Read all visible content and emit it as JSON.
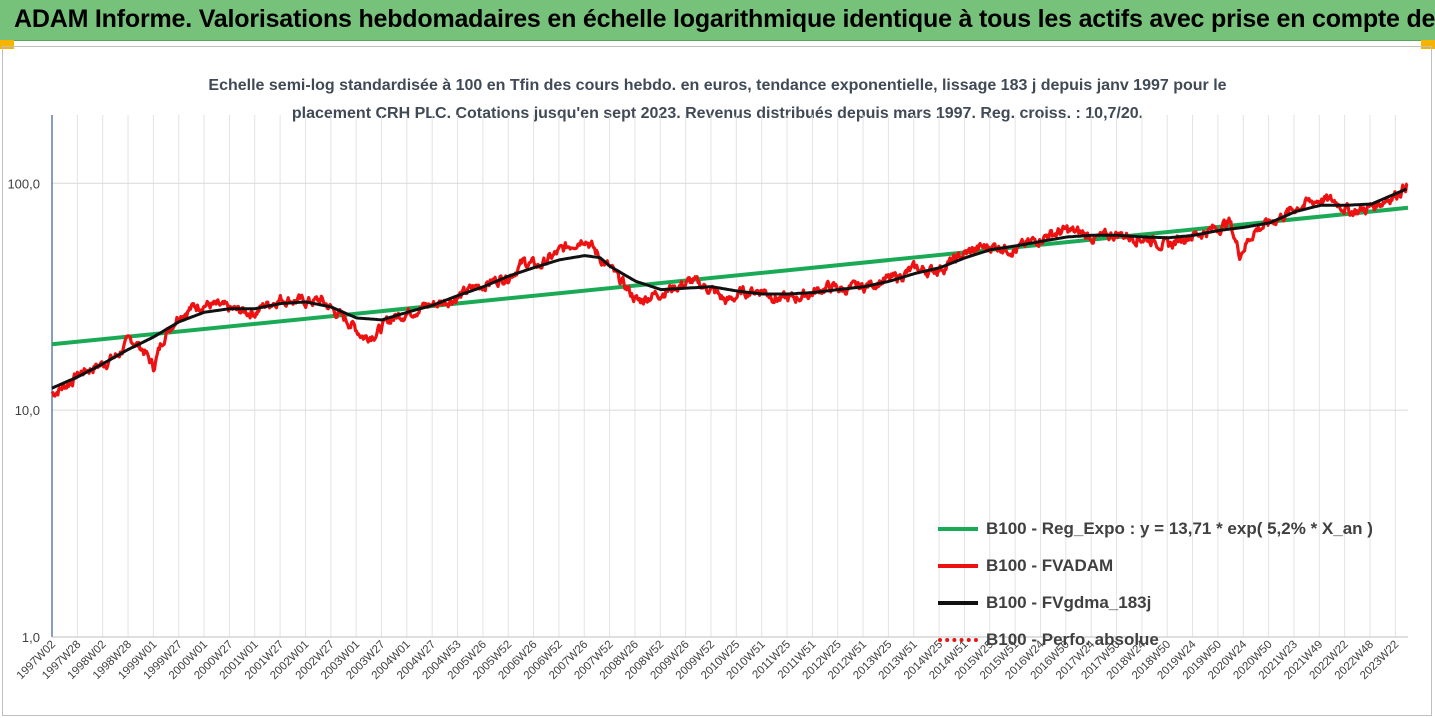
{
  "header": {
    "banner_title": "ADAM Informe. Valorisations hebdomadaires en échelle logarithmique identique à tous les actifs avec prise en compte des revenus co",
    "banner_color": "#77c27a",
    "corner_color": "#f4b400"
  },
  "chart_data": {
    "type": "line",
    "subtitle_line1": "Echelle semi-log standardisée à 100 en Tfin des cours hebdo. en euros, tendance exponentielle, lissage 183 j depuis janv 1997 pour le",
    "subtitle_line2": "placement CRH PLC. Cotations jusqu'en sept 2023. Revenus distribués depuis mars 1997. Reg. croiss. : 10,7/20.",
    "y_scale": "log",
    "ylim": [
      1,
      200
    ],
    "y_ticks": [
      {
        "value": 1,
        "label": "1,0"
      },
      {
        "value": 10,
        "label": "10,0"
      },
      {
        "value": 100,
        "label": "100,0"
      }
    ],
    "grid": "on",
    "x_ticks": [
      "1997W02",
      "1997W28",
      "1998W02",
      "1998W28",
      "1999W01",
      "1999W27",
      "2000W01",
      "2000W27",
      "2001W01",
      "2001W27",
      "2002W01",
      "2002W27",
      "2003W01",
      "2003W27",
      "2004W01",
      "2004W27",
      "2004W53",
      "2005W26",
      "2005W52",
      "2006W26",
      "2006W52",
      "2007W26",
      "2007W52",
      "2008W26",
      "2008W52",
      "2009W26",
      "2009W52",
      "2010W25",
      "2010W51",
      "2011W25",
      "2011W51",
      "2012W25",
      "2012W51",
      "2013W25",
      "2013W51",
      "2014W25",
      "2014W51",
      "2015W25",
      "2015W51",
      "2016W24",
      "2016W50",
      "2017W24",
      "2017W50",
      "2018W24",
      "2018W50",
      "2019W24",
      "2019W50",
      "2020W24",
      "2020W50",
      "2021W23",
      "2021W49",
      "2022W22",
      "2022W48",
      "2023W22"
    ],
    "x_range": [
      1997.0,
      2023.72
    ],
    "legend_position": "bottom-right",
    "series": [
      {
        "name": "B100 - Reg_Expo : y = 13,71 * exp( 5,2% *  X_an )",
        "color": "#1aaa55",
        "style": "solid",
        "x": [
          1997.0,
          2023.72
        ],
        "y": [
          19.5,
          78.0
        ]
      },
      {
        "name": "B100 - FVADAM",
        "color": "#ee1111",
        "style": "solid",
        "x": [
          1997.0,
          1997.3,
          1997.6,
          1998.0,
          1998.3,
          1998.55,
          1998.8,
          1999.0,
          1999.2,
          1999.5,
          1999.8,
          2000.0,
          2000.3,
          2000.6,
          2001.0,
          2001.2,
          2001.5,
          2001.8,
          2002.0,
          2002.3,
          2002.6,
          2002.9,
          2003.15,
          2003.4,
          2003.7,
          2004.0,
          2004.3,
          2004.6,
          2005.0,
          2005.3,
          2005.6,
          2006.0,
          2006.3,
          2006.6,
          2007.0,
          2007.3,
          2007.5,
          2007.8,
          2008.0,
          2008.3,
          2008.55,
          2008.8,
          2009.0,
          2009.3,
          2009.6,
          2010.0,
          2010.3,
          2010.6,
          2011.0,
          2011.3,
          2011.6,
          2012.0,
          2012.3,
          2012.6,
          2013.0,
          2013.3,
          2013.6,
          2014.0,
          2014.3,
          2014.6,
          2015.0,
          2015.3,
          2015.6,
          2016.0,
          2016.3,
          2016.6,
          2017.0,
          2017.3,
          2017.6,
          2018.0,
          2018.3,
          2018.6,
          2019.0,
          2019.3,
          2019.6,
          2020.0,
          2020.2,
          2020.4,
          2020.7,
          2021.0,
          2021.3,
          2021.6,
          2022.0,
          2022.3,
          2022.6,
          2022.9,
          2023.2,
          2023.5,
          2023.72
        ],
        "y": [
          11.8,
          13.0,
          14.8,
          16.0,
          17.5,
          20.5,
          18.5,
          15.5,
          21.0,
          26.5,
          28.5,
          29.5,
          28.5,
          27.5,
          27.0,
          29.0,
          31.0,
          30.5,
          30.0,
          30.5,
          27.0,
          24.0,
          21.0,
          22.0,
          25.5,
          27.0,
          28.5,
          29.5,
          31.5,
          34.5,
          36.5,
          39.0,
          45.0,
          43.0,
          50.0,
          55.0,
          58.0,
          47.0,
          42.0,
          35.0,
          30.0,
          32.0,
          33.0,
          35.0,
          37.0,
          34.0,
          30.0,
          33.0,
          34.0,
          31.0,
          31.0,
          33.0,
          35.0,
          34.0,
          35.0,
          37.0,
          38.0,
          42.0,
          41.0,
          43.0,
          49.0,
          52.0,
          53.0,
          51.0,
          55.0,
          59.0,
          62.0,
          60.0,
          57.0,
          60.0,
          58.0,
          57.0,
          53.0,
          58.0,
          60.0,
          64.0,
          68.0,
          49.0,
          62.0,
          67.0,
          73.0,
          80.0,
          85.0,
          83.0,
          75.0,
          77.0,
          83.0,
          90.0,
          100.0
        ]
      },
      {
        "name": "B100 - FVgdma_183j",
        "color": "#111111",
        "style": "solid",
        "x": [
          1997.0,
          1997.5,
          1998.0,
          1998.5,
          1999.0,
          1999.5,
          2000.0,
          2000.5,
          2001.0,
          2001.5,
          2002.0,
          2002.5,
          2003.0,
          2003.5,
          2004.0,
          2004.5,
          2005.0,
          2005.5,
          2006.0,
          2006.5,
          2007.0,
          2007.5,
          2007.8,
          2008.0,
          2008.5,
          2009.0,
          2009.5,
          2010.0,
          2010.5,
          2011.0,
          2011.5,
          2012.0,
          2012.5,
          2013.0,
          2013.5,
          2014.0,
          2014.5,
          2015.0,
          2015.5,
          2016.0,
          2016.5,
          2017.0,
          2017.5,
          2018.0,
          2018.5,
          2019.0,
          2019.5,
          2020.0,
          2020.5,
          2021.0,
          2021.5,
          2022.0,
          2022.5,
          2023.0,
          2023.72
        ],
        "y": [
          12.5,
          14.0,
          16.0,
          18.5,
          21.0,
          24.5,
          27.0,
          28.0,
          28.0,
          29.5,
          30.0,
          28.5,
          25.5,
          25.0,
          27.0,
          29.0,
          32.0,
          35.0,
          39.0,
          42.5,
          46.0,
          48.0,
          47.0,
          43.0,
          37.0,
          34.0,
          34.5,
          35.0,
          33.5,
          32.5,
          32.5,
          33.0,
          34.0,
          35.0,
          37.0,
          40.0,
          42.5,
          47.0,
          51.0,
          53.0,
          55.5,
          58.0,
          59.0,
          59.0,
          58.0,
          57.5,
          59.0,
          62.0,
          64.0,
          67.0,
          75.0,
          80.0,
          80.0,
          81.0,
          95.0
        ]
      },
      {
        "name": "B100 - Perfo. absolue",
        "color": "#ee1111",
        "style": "dotted",
        "x": [],
        "y": []
      }
    ]
  }
}
